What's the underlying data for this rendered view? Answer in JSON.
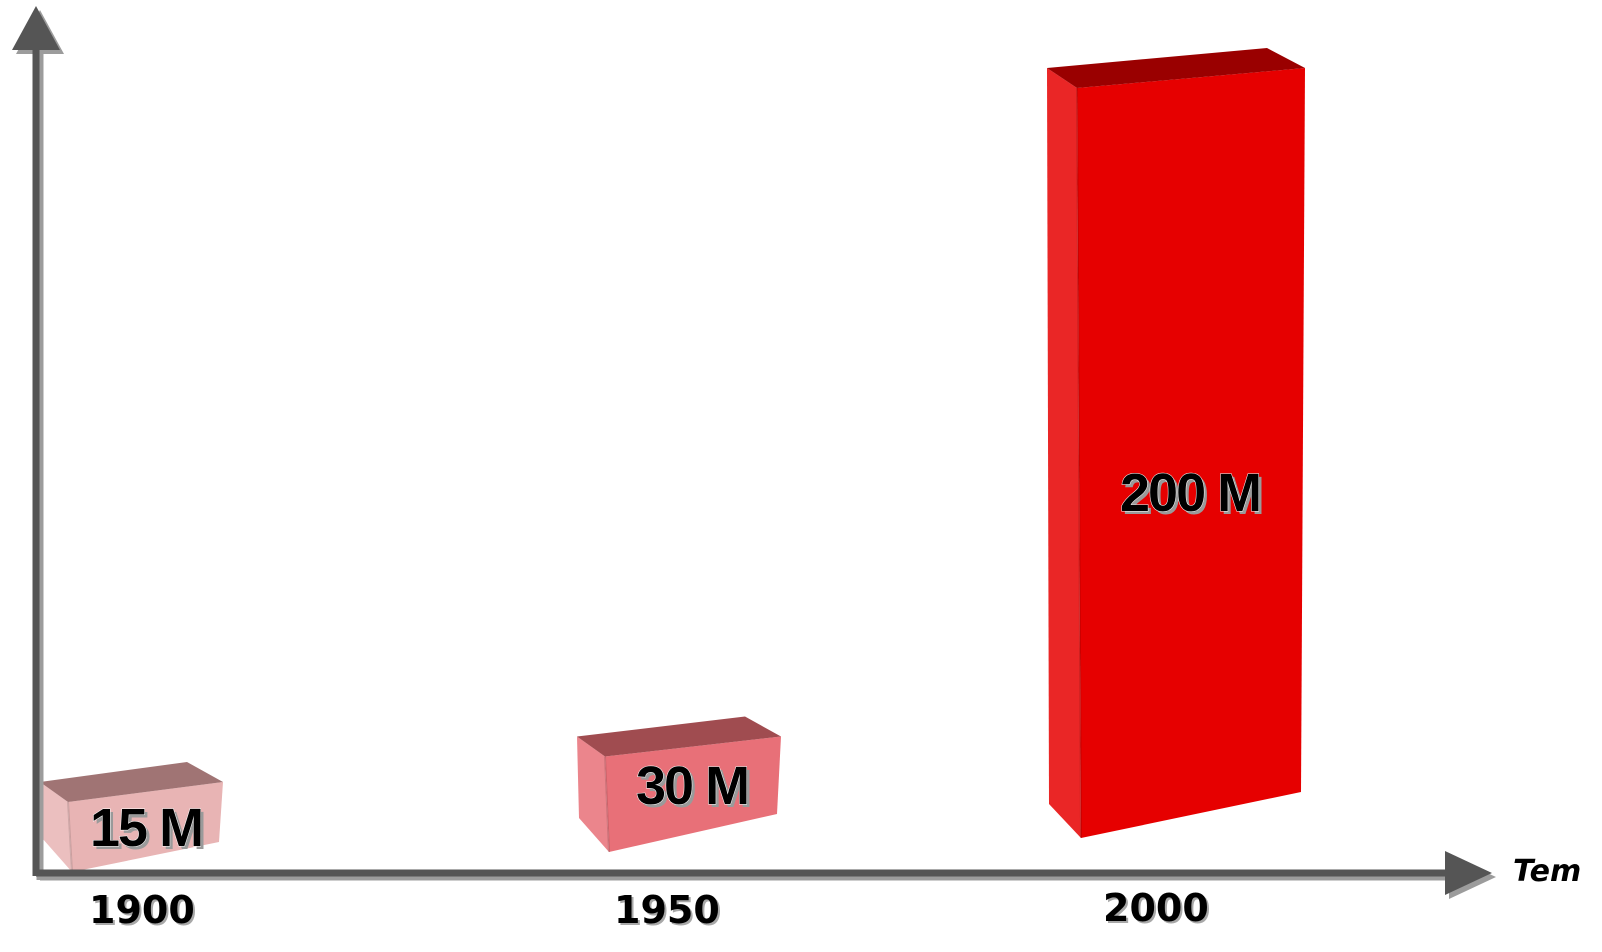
{
  "chart_data": {
    "type": "bar",
    "categories": [
      "1900",
      "1950",
      "2000"
    ],
    "values": [
      15,
      30,
      200
    ],
    "value_labels": [
      "15 M",
      "30 M",
      "200 M"
    ],
    "xlabel": "Tem",
    "ylabel": "",
    "ylim": [
      0,
      200
    ],
    "grid": false,
    "legend": "none",
    "colors": {
      "bars": [
        "#e8b4b4",
        "#e87078",
        "#e60000"
      ],
      "tops": [
        "#a07474",
        "#a04c50",
        "#9a0000"
      ],
      "axis": "#555555"
    }
  }
}
